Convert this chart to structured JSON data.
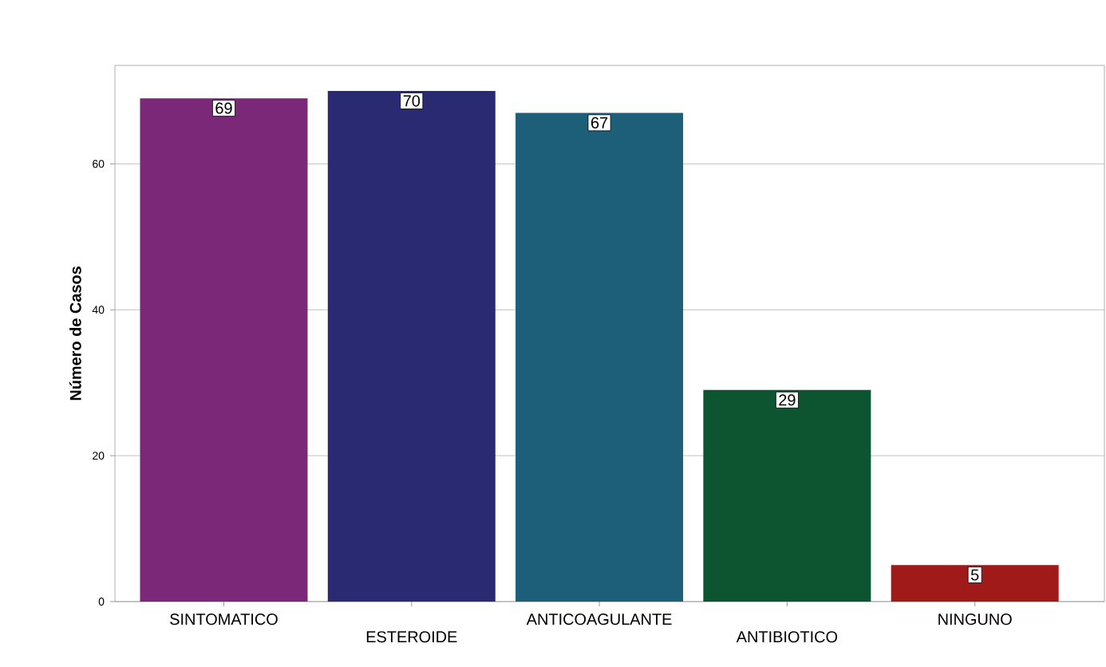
{
  "chart_data": {
    "type": "bar",
    "ylabel": "Número de Casos",
    "categories": [
      "SINTOMATICO",
      "ESTEROIDE",
      "ANTICOAGULANTE",
      "ANTIBIOTICO",
      "NINGUNO"
    ],
    "values": [
      69,
      70,
      67,
      29,
      5
    ],
    "colors": [
      "#7b2878",
      "#2a2a72",
      "#1d5e78",
      "#0d5530",
      "#a01a1a"
    ],
    "ylim": [
      0,
      73.5
    ],
    "yticks": [
      0,
      20,
      40,
      60
    ],
    "grid": "y",
    "data_labels": true
  }
}
